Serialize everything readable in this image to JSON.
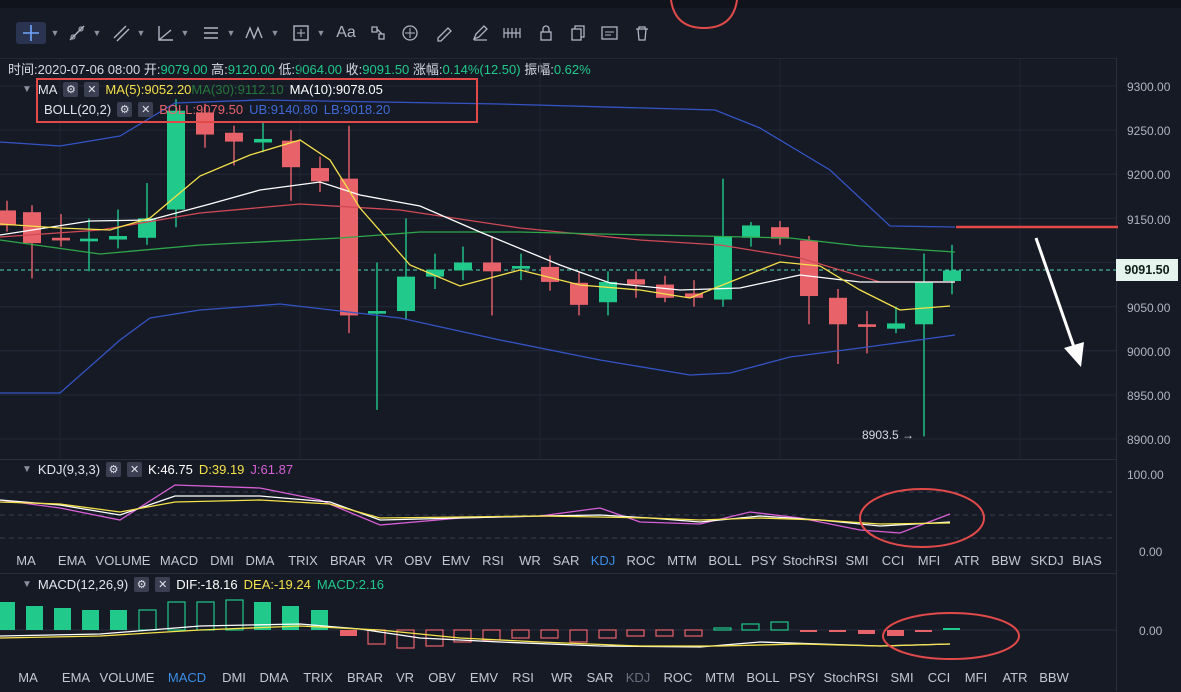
{
  "info": {
    "time_label": "时间:",
    "time": "2020-07-06 08:00",
    "open_label": "开:",
    "open": "9079.00",
    "high_label": "高:",
    "high": "9120.00",
    "low_label": "低:",
    "low": "9064.00",
    "close_label": "收:",
    "close": "9091.50",
    "change_label": "涨幅:",
    "change": "0.14%(12.50)",
    "amp_label": "振幅:",
    "amp": "0.62%"
  },
  "ma_legend": {
    "name": "MA",
    "ma5": "MA(5):9052.20",
    "ma_hidden": "MA(30):9112.10",
    "ma10": "MA(10):9078.05"
  },
  "boll_legend": {
    "name": "BOLL(20,2)",
    "boll": "BOLL:9079.50",
    "ub": "UB:9140.80",
    "lb": "LB:9018.20"
  },
  "price_axis": [
    "9300.00",
    "9250.00",
    "9200.00",
    "9150.00",
    "9100.00",
    "9050.00",
    "9000.00",
    "8950.00",
    "8900.00"
  ],
  "current_price": "9091.50",
  "low_marker": "8903.5 →",
  "kdj": {
    "name": "KDJ(9,3,3)",
    "k": "K:46.75",
    "d": "D:39.19",
    "j": "J:61.87",
    "axis": [
      "100.00",
      "0.00"
    ]
  },
  "macd": {
    "name": "MACD(12,26,9)",
    "dif": "DIF:-18.16",
    "dea": "DEA:-19.24",
    "val": "MACD:2.16",
    "axis": [
      "0.00"
    ]
  },
  "tabs1": [
    "MA",
    "EMA",
    "VOLUME",
    "MACD",
    "DMI",
    "DMA",
    "TRIX",
    "BRAR",
    "VR",
    "OBV",
    "EMV",
    "RSI",
    "WR",
    "SAR",
    "KDJ",
    "ROC",
    "MTM",
    "BOLL",
    "PSY",
    "StochRSI",
    "SMI",
    "CCI",
    "MFI",
    "ATR",
    "BBW",
    "SKDJ",
    "BIAS"
  ],
  "tabs1_active": "KDJ",
  "tabs2": [
    "MA",
    "EMA",
    "VOLUME",
    "MACD",
    "DMI",
    "DMA",
    "TRIX",
    "BRAR",
    "VR",
    "OBV",
    "EMV",
    "RSI",
    "WR",
    "SAR",
    "KDJ",
    "ROC",
    "MTM",
    "BOLL",
    "PSY",
    "StochRSI",
    "SMI",
    "CCI",
    "MFI",
    "ATR",
    "BBW"
  ],
  "tabs2_active": "MACD",
  "tabs2_dim": "KDJ",
  "colors": {
    "up": "#21c98b",
    "down": "#e8626a",
    "accent": "#3a8ee6",
    "annot": "#e24a4a",
    "bg": "#161a25"
  },
  "toolbar_icons": [
    "crosshair-icon",
    "trendline-icon",
    "fib-icon",
    "angle-icon",
    "hline-icon",
    "wave-icon",
    "measure-icon",
    "text-icon",
    "pattern-icon",
    "brush-icon",
    "eraser-icon",
    "pencil-icon",
    "magnet-icon",
    "lock-icon",
    "copy-icon",
    "visibility-icon",
    "trash-icon"
  ],
  "toolbar_text": "Aa"
}
